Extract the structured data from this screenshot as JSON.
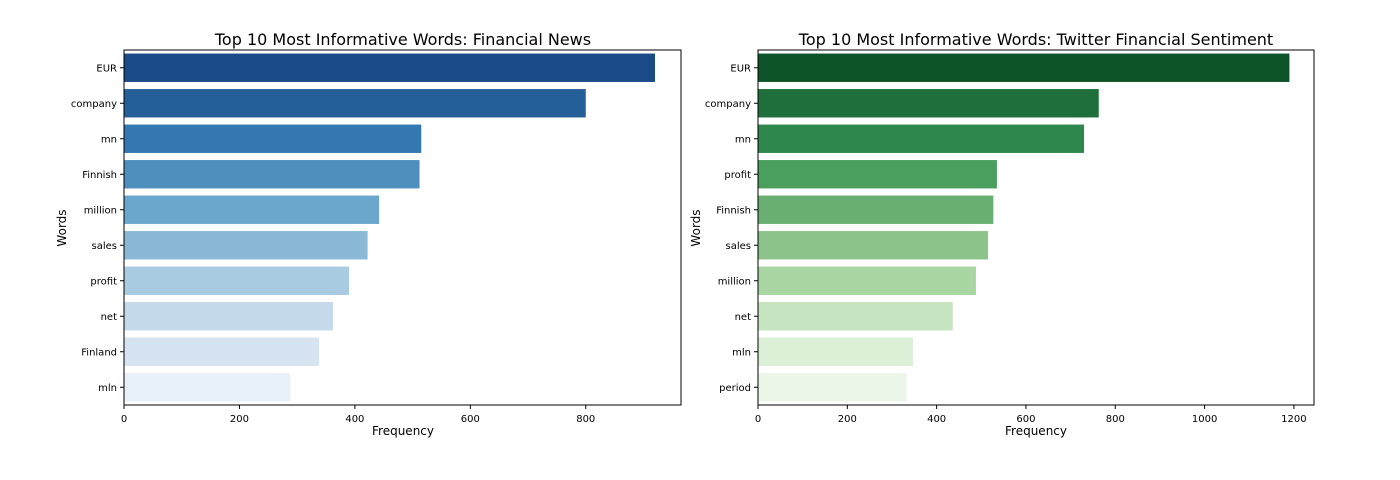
{
  "chart_data": [
    {
      "type": "bar",
      "orientation": "horizontal",
      "title": "Top 10 Most Informative Words: Financial News",
      "xlabel": "Frequency",
      "ylabel": "Words",
      "categories": [
        "EUR",
        "company",
        "mn",
        "Finnish",
        "million",
        "sales",
        "profit",
        "net",
        "Finland",
        "mln"
      ],
      "values": [
        920,
        800,
        515,
        512,
        442,
        422,
        390,
        362,
        338,
        288
      ],
      "xlim": [
        0,
        965
      ],
      "xticks": [
        0,
        200,
        400,
        600,
        800
      ],
      "grid": false,
      "colors": [
        "#1b4b87",
        "#255f97",
        "#3478b1",
        "#4f8fbe",
        "#6ba6cc",
        "#8ab8d6",
        "#a9cbe1",
        "#c4d9ea",
        "#d6e4f1",
        "#e8f0f8"
      ]
    },
    {
      "type": "bar",
      "orientation": "horizontal",
      "title": "Top 10 Most Informative Words: Twitter Financial Sentiment",
      "xlabel": "Frequency",
      "ylabel": "Words",
      "categories": [
        "EUR",
        "company",
        "mn",
        "profit",
        "Finnish",
        "sales",
        "million",
        "net",
        "mln",
        "period"
      ],
      "values": [
        1190,
        763,
        730,
        535,
        527,
        515,
        488,
        436,
        347,
        332
      ],
      "xlim": [
        0,
        1245
      ],
      "xticks": [
        0,
        200,
        400,
        600,
        800,
        1000,
        1200
      ],
      "grid": false,
      "colors": [
        "#0d542a",
        "#1e6f3b",
        "#2e874c",
        "#4a9e5e",
        "#6aaf72",
        "#8cc38a",
        "#a9d5a3",
        "#c5e4bf",
        "#dcefd7",
        "#ebf6e8"
      ]
    }
  ]
}
